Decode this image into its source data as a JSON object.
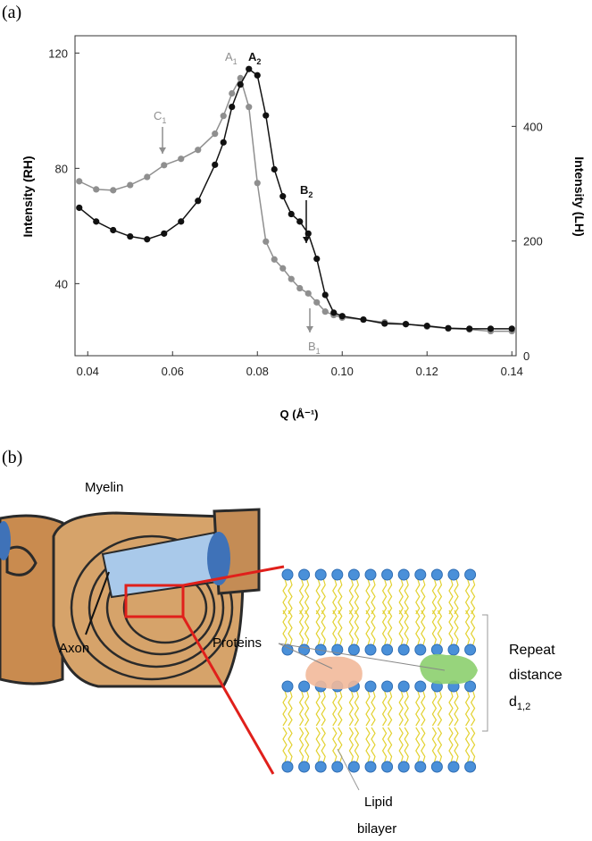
{
  "chart_data": {
    "type": "scatter",
    "panel_label": "(a)",
    "x_label": "Q (Å⁻¹)",
    "y_label": "Intensity (RH)",
    "y2_label": "Intensity (LH)",
    "xlim": [
      0.037,
      0.141
    ],
    "ylim": [
      15,
      126
    ],
    "y2lim": [
      0,
      558
    ],
    "xticks": [
      0.04,
      0.06,
      0.08,
      {
        "value": 0.1,
        "label": "0.10"
      },
      0.12,
      0.14
    ],
    "yticks": [
      40,
      80,
      120
    ],
    "y2ticks": [
      0,
      200,
      400
    ],
    "x": [
      0.038,
      0.042,
      0.046,
      0.05,
      0.054,
      0.058,
      0.062,
      0.066,
      0.07,
      0.072,
      0.074,
      0.076,
      0.078,
      0.08,
      0.082,
      0.084,
      0.086,
      0.088,
      0.09,
      0.092,
      0.094,
      0.096,
      0.098,
      0.1,
      0.105,
      0.11,
      0.115,
      0.12,
      0.125,
      0.13,
      0.135,
      0.14
    ],
    "series": [
      {
        "color": "#8f8f8f",
        "axis": "y",
        "values": [
          75.5,
          72.7,
          72.4,
          74.2,
          77.0,
          81.1,
          83.3,
          86.4,
          92.0,
          98.2,
          106.0,
          111.3,
          101.3,
          74.9,
          54.6,
          48.4,
          45.3,
          41.6,
          38.4,
          36.6,
          33.5,
          30.3,
          29.1,
          28.2,
          27.5,
          26.6,
          26.0,
          25.1,
          24.4,
          24.1,
          23.5,
          23.5
        ]
      },
      {
        "color": "#111111",
        "axis": "y2",
        "values": [
          258,
          234,
          219,
          208,
          203,
          213,
          234,
          270,
          333,
          372,
          434,
          473,
          500,
          489,
          419,
          325,
          278,
          247,
          234,
          213,
          169,
          106,
          75,
          69,
          63,
          56,
          55,
          52,
          48,
          47,
          47,
          47
        ]
      }
    ],
    "annotations": [
      {
        "text": "A",
        "sub": "1"
      },
      {
        "text": "A",
        "sub": "2"
      },
      {
        "text": "C",
        "sub": "1"
      },
      {
        "text": "B",
        "sub": "2"
      },
      {
        "text": "B",
        "sub": "1"
      }
    ]
  },
  "diagram": {
    "panel_label": "(b)",
    "myelin": "Myelin",
    "axon": "Axon",
    "proteins": "Proteins",
    "repeat": [
      "Repeat",
      "distance"
    ],
    "repeat_symbol": {
      "text": "d",
      "sub": "1,2"
    },
    "lipid": [
      "Lipid",
      "bilayer"
    ]
  }
}
